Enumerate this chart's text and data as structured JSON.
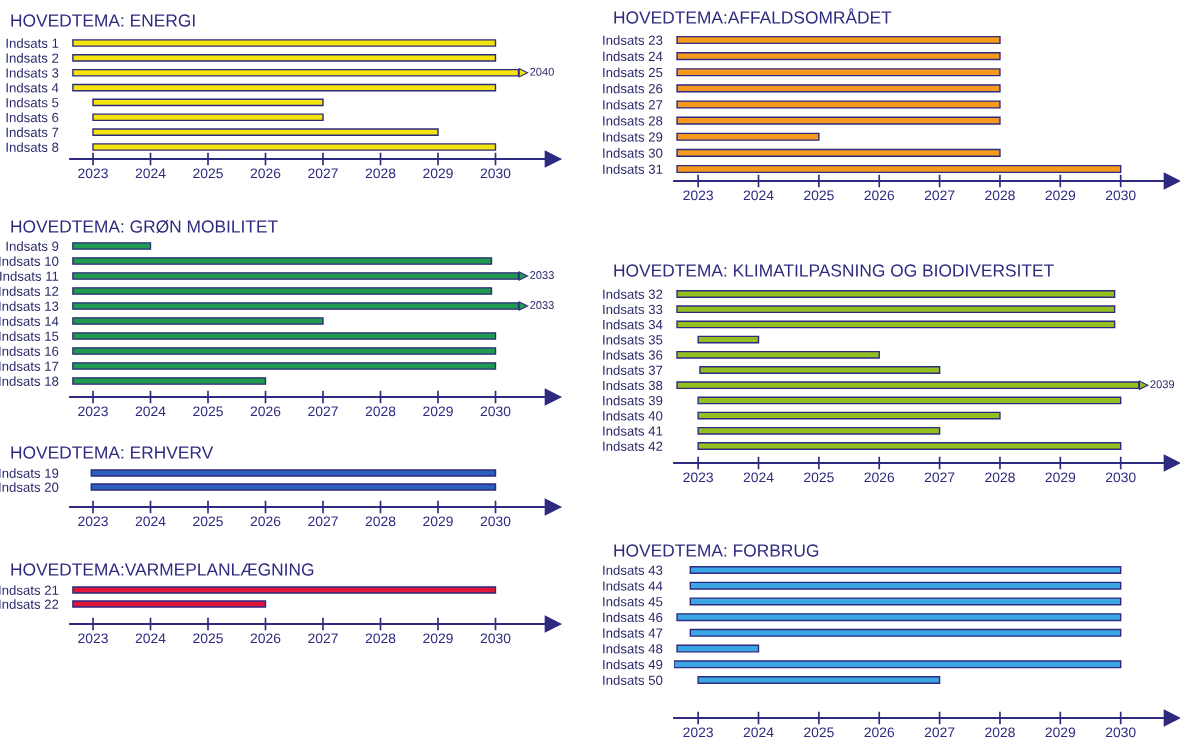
{
  "chart_data": [
    {
      "type": "bar",
      "orientation": "horizontal",
      "title": "HOVEDTEMA: ENERGI",
      "categories": [
        "Indsats 1",
        "Indsats 2",
        "Indsats 3",
        "Indsats 4",
        "Indsats 5",
        "Indsats 6",
        "Indsats 7",
        "Indsats 8"
      ],
      "base": [
        2022.65,
        2022.65,
        2022.65,
        2022.65,
        2023,
        2023,
        2023,
        2023
      ],
      "values": [
        7.35,
        7.35,
        7.75,
        7.35,
        4,
        4,
        6,
        7
      ],
      "color": "#f5e50c",
      "xlim": [
        2022.6,
        2031.0
      ],
      "xticks": [
        2023,
        2024,
        2025,
        2026,
        2027,
        2028,
        2029,
        2030
      ],
      "annotations": [
        "2040"
      ]
    },
    {
      "type": "bar",
      "orientation": "horizontal",
      "title": "HOVEDTEMA: GRØN MOBILITET",
      "categories": [
        "Indsats 9",
        "Indsats 10",
        "Indsats 11",
        "Indsats 12",
        "Indsats 13",
        "Indsats 14",
        "Indsats 15",
        "Indsats 16",
        "Indsats 17",
        "Indsats 18"
      ],
      "base": [
        2022.65,
        2022.65,
        2022.65,
        2022.65,
        2022.65,
        2022.65,
        2022.65,
        2022.65,
        2022.65,
        2022.65
      ],
      "values": [
        1.35,
        7.28,
        7.75,
        7.28,
        7.75,
        4.35,
        7.35,
        7.35,
        7.35,
        3.35
      ],
      "color": "#1f9a4e",
      "xlim": [
        2022.6,
        2031.0
      ],
      "xticks": [
        2023,
        2024,
        2025,
        2026,
        2027,
        2028,
        2029,
        2030
      ],
      "annotations": [
        "2033",
        "2033"
      ]
    },
    {
      "type": "bar",
      "orientation": "horizontal",
      "title": "HOVEDTEMA: ERHVERV",
      "categories": [
        "Indsats 19",
        "Indsats 20"
      ],
      "base": [
        2022.97,
        2022.97
      ],
      "values": [
        7.03,
        7.03
      ],
      "color": "#2e5fbf",
      "xlim": [
        2022.6,
        2031.0
      ],
      "xticks": [
        2023,
        2024,
        2025,
        2026,
        2027,
        2028,
        2029,
        2030
      ]
    },
    {
      "type": "bar",
      "orientation": "horizontal",
      "title": "HOVEDTEMA:VARMEPLANLÆGNING",
      "categories": [
        "Indsats 21",
        "Indsats 22"
      ],
      "base": [
        2022.65,
        2022.65
      ],
      "values": [
        7.35,
        3.35
      ],
      "color": "#e0173a",
      "xlim": [
        2022.6,
        2031.0
      ],
      "xticks": [
        2023,
        2024,
        2025,
        2026,
        2027,
        2028,
        2029,
        2030
      ]
    },
    {
      "type": "bar",
      "orientation": "horizontal",
      "title": "HOVEDTEMA:AFFALDSOMRÅDET",
      "categories": [
        "Indsats 23",
        "Indsats 24",
        "Indsats 25",
        "Indsats 26",
        "Indsats 27",
        "Indsats 28",
        "Indsats 29",
        "Indsats 30",
        "Indsats 31"
      ],
      "base": [
        2022.65,
        2022.65,
        2022.65,
        2022.65,
        2022.65,
        2022.65,
        2022.65,
        2022.65,
        2022.65
      ],
      "values": [
        5.35,
        5.35,
        5.35,
        5.35,
        5.35,
        5.35,
        2.35,
        5.35,
        7.35
      ],
      "color": "#f59a1e",
      "xlim": [
        2022.6,
        2030.85
      ],
      "xticks": [
        2023,
        2024,
        2025,
        2026,
        2027,
        2028,
        2029,
        2030
      ]
    },
    {
      "type": "bar",
      "orientation": "horizontal",
      "title": "HOVEDTEMA: KLIMATILPASNING OG BIODIVERSITET",
      "categories": [
        "Indsats 32",
        "Indsats 33",
        "Indsats 34",
        "Indsats 35",
        "Indsats 36",
        "Indsats 37",
        "Indsats 38",
        "Indsats 39",
        "Indsats 40",
        "Indsats 41",
        "Indsats 42"
      ],
      "base": [
        2022.65,
        2022.65,
        2022.65,
        2023,
        2022.65,
        2023.03,
        2022.65,
        2023,
        2023,
        2023,
        2023
      ],
      "values": [
        7.25,
        7.25,
        7.25,
        1,
        3.35,
        3.97,
        7.65,
        7,
        5,
        4,
        7
      ],
      "color": "#93c01f",
      "xlim": [
        2022.6,
        2030.85
      ],
      "xticks": [
        2023,
        2024,
        2025,
        2026,
        2027,
        2028,
        2029,
        2030
      ],
      "annotations": [
        "2039"
      ]
    },
    {
      "type": "bar",
      "orientation": "horizontal",
      "title": "HOVEDTEMA: FORBRUG",
      "categories": [
        "Indsats 43",
        "Indsats 44",
        "Indsats 45",
        "Indsats 46",
        "Indsats 47",
        "Indsats 48",
        "Indsats 49",
        "Indsats 50"
      ],
      "base": [
        2022.87,
        2022.87,
        2022.87,
        2022.65,
        2022.87,
        2022.65,
        2022.6,
        2023
      ],
      "values": [
        7.13,
        7.13,
        7.13,
        7.35,
        7.13,
        1.35,
        7.4,
        4
      ],
      "color": "#3aa7e4",
      "xlim": [
        2022.6,
        2030.85
      ],
      "xticks": [
        2023,
        2024,
        2025,
        2026,
        2027,
        2028,
        2029,
        2030
      ]
    }
  ]
}
